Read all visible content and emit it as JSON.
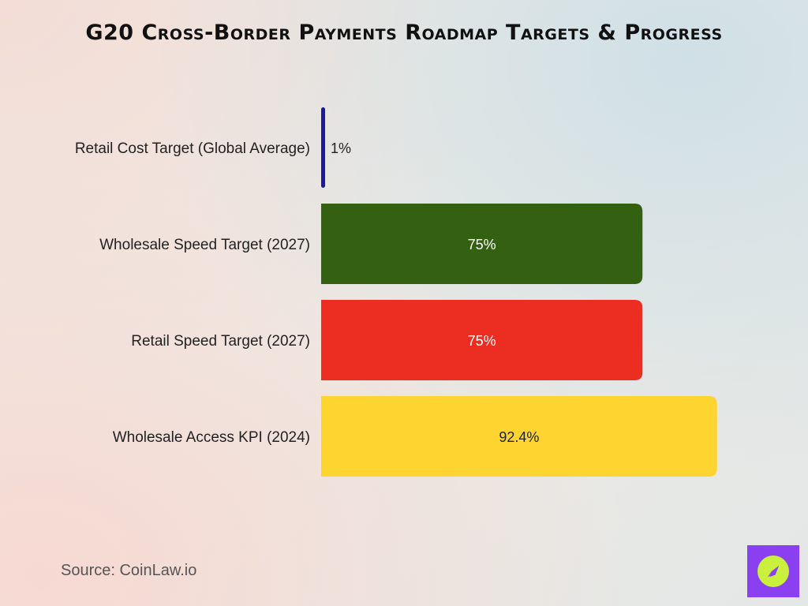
{
  "title": "G20 Cross-Border Payments Roadmap Targets & Progress",
  "source": "Source: CoinLaw.io",
  "chart_data": {
    "type": "bar",
    "orientation": "horizontal",
    "title": "G20 Cross-Border Payments Roadmap Targets & Progress",
    "categories": [
      "Retail Cost Target (Global Average)",
      "Wholesale Speed Target (2027)",
      "Retail Speed Target (2027)",
      "Wholesale Access KPI (2024)"
    ],
    "values": [
      1,
      75,
      75,
      92.4
    ],
    "labels": [
      "1%",
      "75%",
      "75%",
      "92.4%"
    ],
    "colors": [
      "#1a1a9a",
      "#336111",
      "#eb2e21",
      "#fdd430"
    ],
    "label_colors": [
      "#222222",
      "#ffffff",
      "#ffffff",
      "#222222"
    ],
    "xlim": [
      0,
      100
    ],
    "grid": false,
    "legend": "none"
  },
  "logo": {
    "icon": "compass-icon",
    "background": "#8a3ff0",
    "accent": "#c9f03d"
  }
}
